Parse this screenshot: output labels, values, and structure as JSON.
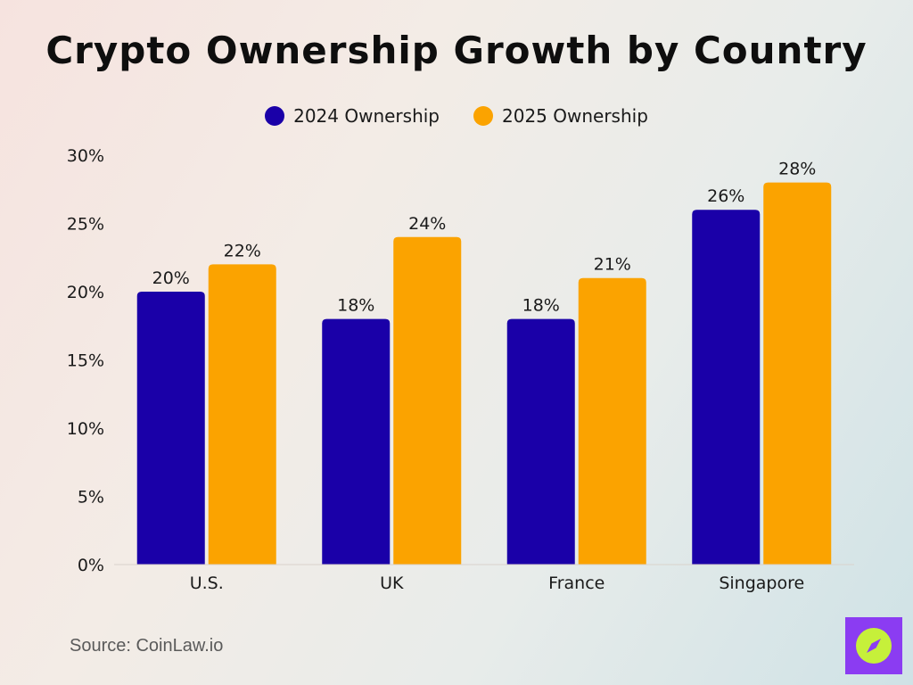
{
  "chart_data": {
    "type": "bar",
    "title": "Crypto Ownership Growth by Country",
    "categories": [
      "U.S.",
      "UK",
      "France",
      "Singapore"
    ],
    "series": [
      {
        "name": "2024 Ownership",
        "values": [
          20,
          18,
          18,
          26
        ],
        "color": "#1a00a8"
      },
      {
        "name": "2025 Ownership",
        "values": [
          22,
          24,
          21,
          28
        ],
        "color": "#fba300"
      }
    ],
    "ylim": [
      0,
      30
    ],
    "yticks": [
      0,
      5,
      10,
      15,
      20,
      25,
      30
    ],
    "value_suffix": "%",
    "xlabel": "",
    "ylabel": "",
    "grid": false,
    "legend_position": "top-center"
  },
  "source": "Source: CoinLaw.io",
  "colors": {
    "logo_bg": "#8b3cf2",
    "logo_circle": "#c6f03a"
  },
  "logo_icon": "compass-icon"
}
